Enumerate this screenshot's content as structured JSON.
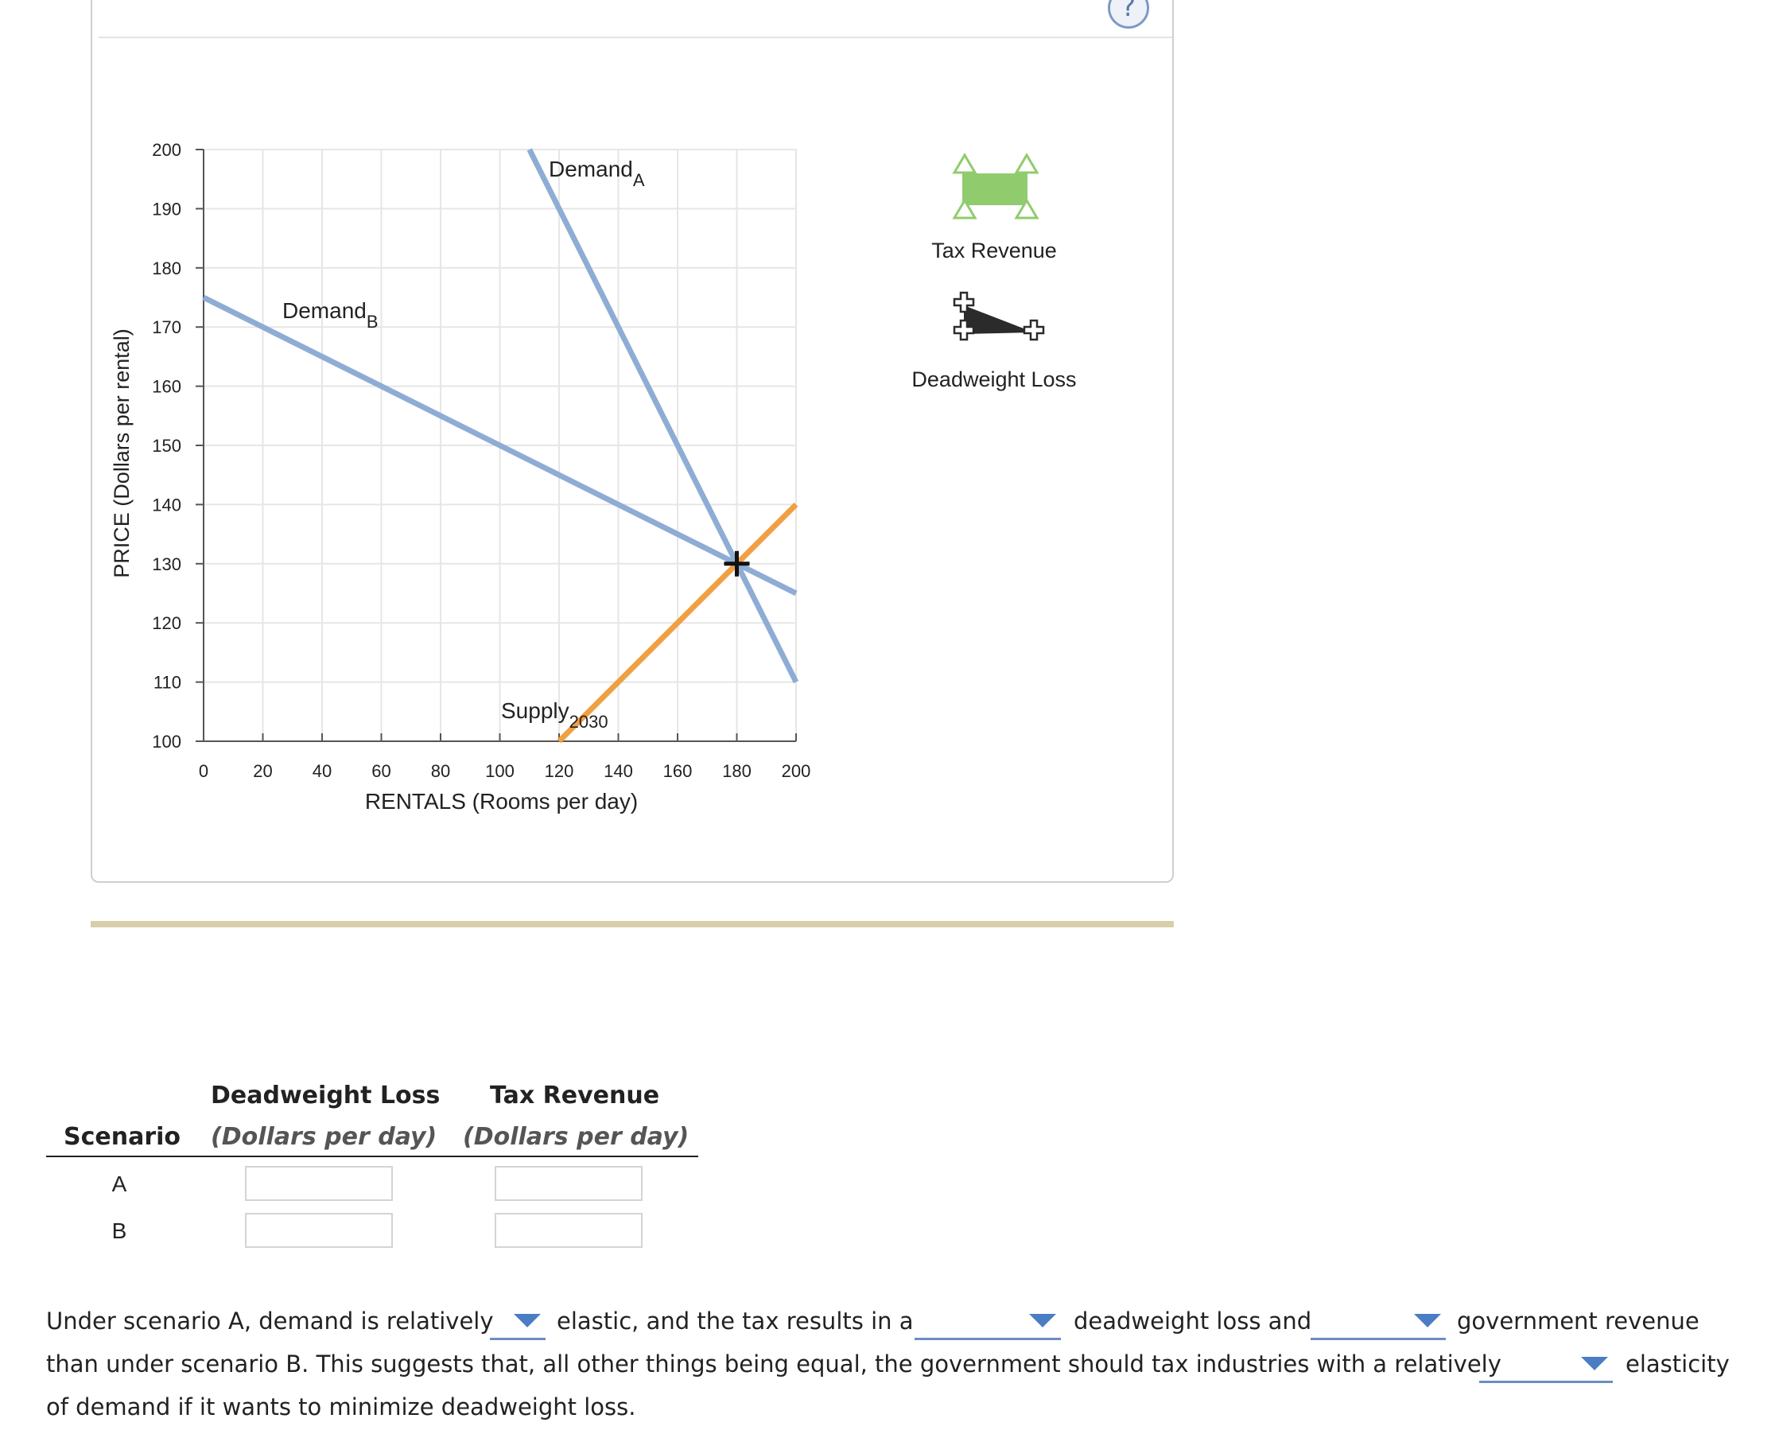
{
  "chart_data": {
    "type": "line",
    "xlabel": "RENTALS (Rooms per day)",
    "ylabel": "PRICE (Dollars per rental)",
    "xlim": [
      0,
      200
    ],
    "ylim": [
      100,
      200
    ],
    "x_ticks": [
      0,
      20,
      40,
      60,
      80,
      100,
      120,
      140,
      160,
      180,
      200
    ],
    "y_ticks": [
      100,
      110,
      120,
      130,
      140,
      150,
      160,
      170,
      180,
      190,
      200
    ],
    "grid": true,
    "series": [
      {
        "name": "Demand",
        "subscript": "A",
        "color": "#8eadd4",
        "points": [
          [
            110,
            200
          ],
          [
            200,
            110
          ]
        ]
      },
      {
        "name": "Demand",
        "subscript": "B",
        "color": "#8eadd4",
        "points": [
          [
            0,
            175
          ],
          [
            200,
            125
          ]
        ]
      },
      {
        "name": "Supply",
        "subscript": "2030",
        "color": "#f0a042",
        "points": [
          [
            120,
            100
          ],
          [
            200,
            140
          ]
        ]
      }
    ],
    "equilibrium_marker": {
      "x": 180,
      "y": 130
    },
    "legend_tools": [
      {
        "label": "Tax Revenue",
        "icon": "green-rectangle-icon",
        "color": "#90cc6e"
      },
      {
        "label": "Deadweight Loss",
        "icon": "black-triangle-icon",
        "color": "#2b2b2b"
      }
    ]
  },
  "help": {
    "symbol": "?"
  },
  "table": {
    "scenario_header": "Scenario",
    "dwl_header": "Deadweight Loss",
    "dwl_sub": "(Dollars per day)",
    "tax_header": "Tax Revenue",
    "tax_sub": "(Dollars per day)",
    "rows": [
      {
        "label": "A",
        "dwl": "",
        "tax": ""
      },
      {
        "label": "B",
        "dwl": "",
        "tax": ""
      }
    ]
  },
  "paragraph": {
    "l1_a": "Under scenario A, demand is relatively",
    "l1_b": "elastic, and the tax results in a",
    "l1_c": "deadweight loss and",
    "l1_d": "government revenue",
    "l2_a": "than under scenario B. This suggests that, all other things being equal, the government should tax industries with a relatively",
    "l2_b": "elasticity",
    "l3": "of demand if it wants to minimize deadweight loss."
  }
}
